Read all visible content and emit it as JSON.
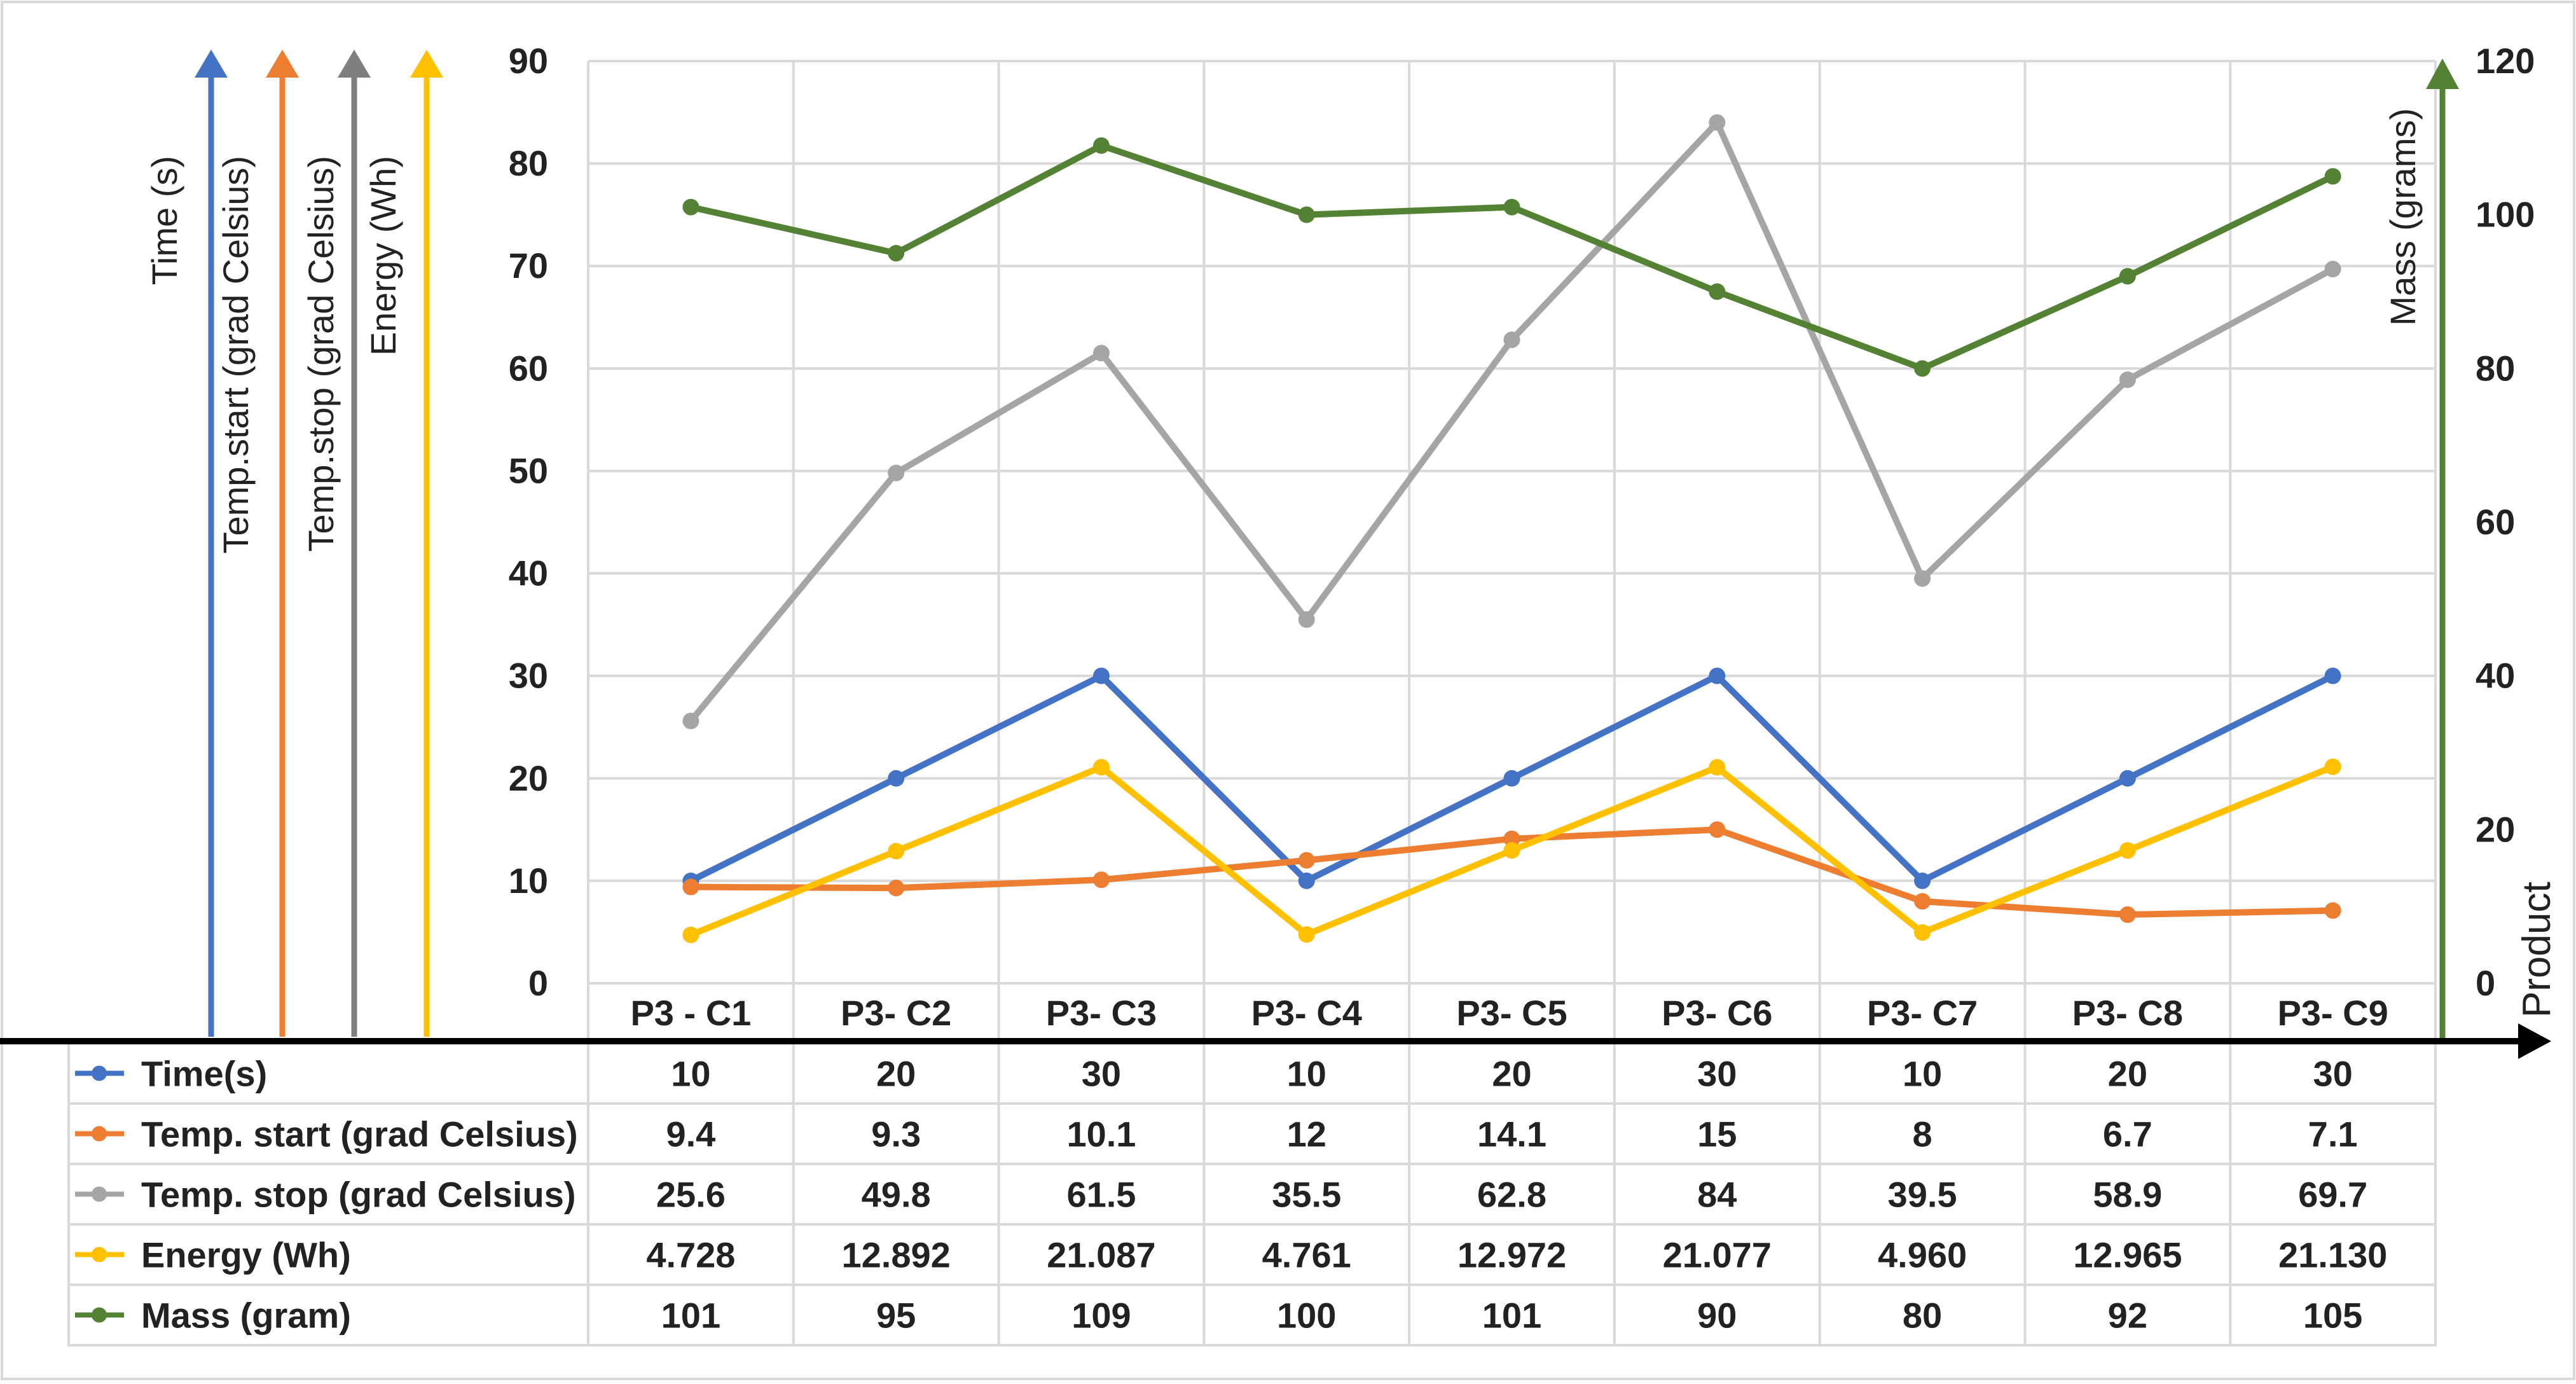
{
  "chart_data": {
    "type": "line",
    "title": "",
    "categories": [
      "P3 - C1",
      "P3-  C2",
      "P3-  C3",
      "P3-  C4",
      "P3-  C5",
      "P3-  C6",
      "P3-  C7",
      "P3-  C8",
      "P3-  C9"
    ],
    "xlabel": "Product",
    "left_axis": {
      "ylim": [
        0,
        90
      ],
      "ticks": [
        "0",
        "10",
        "20",
        "30",
        "40",
        "50",
        "60",
        "70",
        "80",
        "90"
      ],
      "labels": [
        "Time (s)",
        "Temp.start (grad Celsius)",
        "Temp.stop (grad Celsius)",
        "Energy (Wh)"
      ]
    },
    "right_axis": {
      "ylim": [
        0,
        120
      ],
      "ticks": [
        "0",
        "20",
        "40",
        "60",
        "80",
        "100",
        "120"
      ],
      "label": "Mass (grams)"
    },
    "grid": true,
    "series": [
      {
        "name": "Time(s)",
        "axis": "left",
        "color": "#4472C4",
        "values": [
          10,
          20,
          30,
          10,
          20,
          30,
          10,
          20,
          30
        ],
        "labels": [
          "10",
          "20",
          "30",
          "10",
          "20",
          "30",
          "10",
          "20",
          "30"
        ]
      },
      {
        "name": "Temp. start (grad Celsius)",
        "axis": "left",
        "color": "#ED7D31",
        "values": [
          9.4,
          9.3,
          10.1,
          12,
          14.1,
          15,
          8,
          6.7,
          7.1
        ],
        "labels": [
          "9.4",
          "9.3",
          "10.1",
          "12",
          "14.1",
          "15",
          "8",
          "6.7",
          "7.1"
        ]
      },
      {
        "name": "Temp. stop (grad Celsius)",
        "axis": "left",
        "color": "#A5A5A5",
        "values": [
          25.6,
          49.8,
          61.5,
          35.5,
          62.8,
          84,
          39.5,
          58.9,
          69.7
        ],
        "labels": [
          "25.6",
          "49.8",
          "61.5",
          "35.5",
          "62.8",
          "84",
          "39.5",
          "58.9",
          "69.7"
        ]
      },
      {
        "name": "Energy (Wh)",
        "axis": "left",
        "color": "#FFC000",
        "values": [
          4.728,
          12.892,
          21.087,
          4.761,
          12.972,
          21.077,
          4.96,
          12.965,
          21.13
        ],
        "labels": [
          "4.728",
          "12.892",
          "21.087",
          "4.761",
          "12.972",
          "21.077",
          "4.960",
          "12.965",
          "21.130"
        ]
      },
      {
        "name": "Mass (gram)",
        "axis": "right",
        "color": "#548235",
        "values": [
          101,
          95,
          109,
          100,
          101,
          90,
          80,
          92,
          105
        ],
        "labels": [
          "101",
          "95",
          "109",
          "100",
          "101",
          "90",
          "80",
          "92",
          "105"
        ]
      }
    ],
    "axis_arrow_colors": [
      "#4472C4",
      "#ED7D31",
      "#7F7F7F",
      "#FFC000"
    ],
    "mass_axis_color": "#548235",
    "axis_line_color": "#000000",
    "grid_color": "#D9D9D9"
  }
}
